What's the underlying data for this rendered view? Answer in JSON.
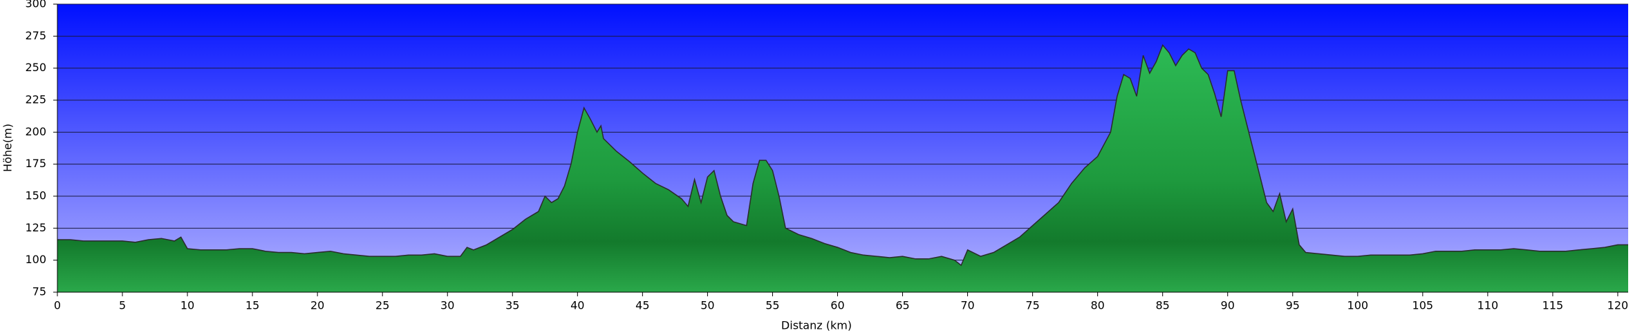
{
  "chart_data": {
    "type": "area",
    "xlabel": "Distanz   (km)",
    "ylabel": "Höhe(m)",
    "x": [
      0,
      1,
      2,
      3,
      4,
      5,
      6,
      7,
      8,
      9,
      9.5,
      10,
      11,
      12,
      13,
      14,
      15,
      16,
      17,
      18,
      19,
      20,
      21,
      22,
      23,
      24,
      25,
      26,
      27,
      28,
      29,
      30,
      31,
      31.5,
      32,
      33,
      34,
      35,
      36,
      37,
      37.5,
      38,
      38.5,
      39,
      39.5,
      40,
      40.5,
      41,
      41.5,
      41.8,
      42,
      43,
      44,
      45,
      46,
      47,
      48,
      48.5,
      49,
      49.5,
      50,
      50.5,
      51,
      51.5,
      52,
      53,
      53.5,
      54,
      54.5,
      55,
      55.5,
      56,
      57,
      58,
      59,
      60,
      61,
      62,
      63,
      64,
      65,
      66,
      67,
      68,
      69,
      69.5,
      70,
      71,
      72,
      73,
      74,
      75,
      76,
      77,
      78,
      79,
      80,
      81,
      81.5,
      82,
      82.5,
      83,
      83.5,
      84,
      84.5,
      85,
      85.5,
      86,
      86.5,
      87,
      87.5,
      88,
      88.5,
      89,
      89.5,
      90,
      90.5,
      91,
      92,
      93,
      93.5,
      94,
      94.5,
      95,
      95.5,
      96,
      97,
      98,
      99,
      100,
      101,
      102,
      103,
      104,
      105,
      106,
      107,
      108,
      109,
      110,
      111,
      112,
      113,
      114,
      115,
      116,
      117,
      118,
      119,
      120,
      120.8
    ],
    "values": [
      116,
      116,
      115,
      115,
      115,
      115,
      114,
      116,
      117,
      115,
      118,
      109,
      108,
      108,
      108,
      109,
      109,
      107,
      106,
      106,
      105,
      106,
      107,
      105,
      104,
      103,
      103,
      103,
      104,
      104,
      105,
      103,
      103,
      110,
      108,
      112,
      118,
      124,
      132,
      138,
      150,
      145,
      148,
      158,
      175,
      200,
      219,
      210,
      200,
      205,
      195,
      185,
      177,
      168,
      160,
      155,
      148,
      142,
      163,
      145,
      165,
      170,
      150,
      135,
      130,
      127,
      160,
      178,
      178,
      170,
      150,
      125,
      120,
      117,
      113,
      110,
      106,
      104,
      103,
      102,
      103,
      101,
      101,
      103,
      100,
      96,
      108,
      103,
      106,
      112,
      118,
      127,
      136,
      145,
      160,
      172,
      181,
      200,
      228,
      245,
      242,
      228,
      260,
      246,
      255,
      268,
      262,
      252,
      260,
      265,
      262,
      250,
      245,
      230,
      212,
      248,
      248,
      225,
      185,
      145,
      138,
      152,
      130,
      140,
      112,
      106,
      105,
      104,
      103,
      103,
      104,
      104,
      104,
      104,
      105,
      107,
      107,
      107,
      108,
      108,
      108,
      109,
      108,
      107,
      107,
      107,
      108,
      109,
      110,
      112,
      112
    ],
    "color": "#1fa040",
    "xlim": [
      0,
      120.8
    ],
    "ylim": [
      75,
      300
    ],
    "xticks": [
      0,
      5,
      10,
      15,
      20,
      25,
      30,
      35,
      40,
      45,
      50,
      55,
      60,
      65,
      70,
      75,
      80,
      85,
      90,
      95,
      100,
      105,
      110,
      115,
      120
    ],
    "yticks": [
      75,
      100,
      125,
      150,
      175,
      200,
      225,
      250,
      275,
      300
    ],
    "grid": true
  }
}
